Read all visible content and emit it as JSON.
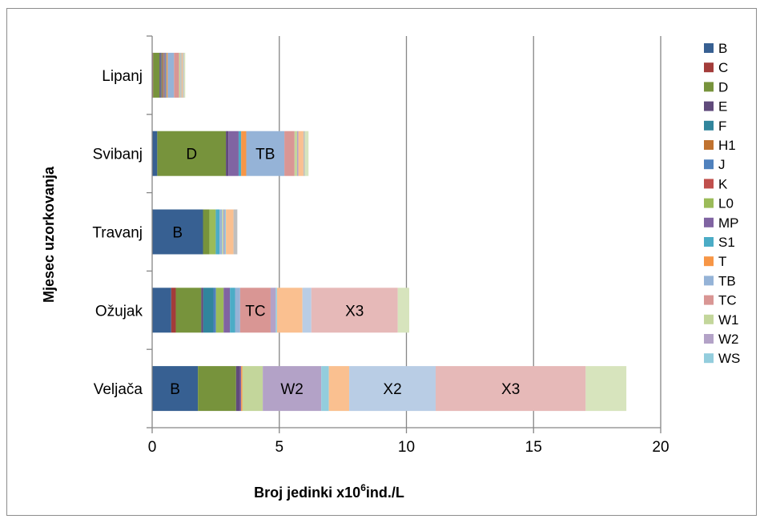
{
  "chart_data": {
    "type": "bar",
    "orientation": "horizontal",
    "stacked": true,
    "categories": [
      "Veljača",
      "Ožujak",
      "Travanj",
      "Svibanj",
      "Lipanj"
    ],
    "xlabel_prefix": "Broj jedinki x10",
    "xlabel_sup": "6",
    "xlabel_suffix": "ind./L",
    "ylabel": "Mjesec uzorkovanja",
    "xlim": [
      0,
      20
    ],
    "xticks": [
      0,
      5,
      10,
      15,
      20
    ],
    "grid": "vertical major",
    "legend_position": "right",
    "series": [
      {
        "name": "B",
        "color": "#376092",
        "values": [
          1.8,
          0.75,
          2.0,
          0.2,
          0.02
        ]
      },
      {
        "name": "C",
        "color": "#A33C3A",
        "values": [
          0.0,
          0.18,
          0.0,
          0.0,
          0.02
        ]
      },
      {
        "name": "D",
        "color": "#77933C",
        "values": [
          1.5,
          1.0,
          0.25,
          2.7,
          0.25
        ]
      },
      {
        "name": "E",
        "color": "#604A7B",
        "values": [
          0.15,
          0.08,
          0.0,
          0.1,
          0.05
        ]
      },
      {
        "name": "F",
        "color": "#31859C",
        "values": [
          0.0,
          0.4,
          0.0,
          0.0,
          0.03
        ]
      },
      {
        "name": "H1",
        "color": "#C0722F",
        "values": [
          0.0,
          0.0,
          0.0,
          0.0,
          0.05
        ]
      },
      {
        "name": "J",
        "color": "#4F81BD",
        "values": [
          0.0,
          0.1,
          0.0,
          0.0,
          0.02
        ]
      },
      {
        "name": "K",
        "color": "#C0504D",
        "values": [
          0.0,
          0.0,
          0.0,
          0.0,
          0.02
        ]
      },
      {
        "name": "L0",
        "color": "#9BBB59",
        "values": [
          0.0,
          0.3,
          0.25,
          0.0,
          0.02
        ]
      },
      {
        "name": "MP",
        "color": "#8064A2",
        "values": [
          0.05,
          0.25,
          0.0,
          0.4,
          0.05
        ]
      },
      {
        "name": "S1",
        "color": "#4BACC6",
        "values": [
          0.0,
          0.2,
          0.15,
          0.1,
          0.03
        ]
      },
      {
        "name": "T",
        "color": "#F79646",
        "values": [
          0.05,
          0.0,
          0.0,
          0.2,
          0.05
        ]
      },
      {
        "name": "TB",
        "color": "#95B3D7",
        "values": [
          0.0,
          0.2,
          0.1,
          1.5,
          0.25
        ]
      },
      {
        "name": "TC",
        "color": "#D99694",
        "values": [
          0.0,
          1.2,
          0.0,
          0.4,
          0.2
        ]
      },
      {
        "name": "W1",
        "color": "#C3D69B",
        "values": [
          0.8,
          0.0,
          0.05,
          0.1,
          0.05
        ]
      },
      {
        "name": "W2",
        "color": "#B3A2C7",
        "values": [
          2.3,
          0.2,
          0.05,
          0.05,
          0.02
        ]
      },
      {
        "name": "WS",
        "color": "#93CDDD",
        "values": [
          0.3,
          0.05,
          0.05,
          0.0,
          0.02
        ]
      },
      {
        "name": "",
        "color": "#FAC090",
        "values": [
          0.8,
          1.0,
          0.3,
          0.2,
          0.05
        ]
      },
      {
        "name": "",
        "color": "#BFBFBF",
        "values": [
          0.0,
          0.0,
          0.15,
          0.05,
          0.05
        ]
      },
      {
        "name": "X2",
        "color": "#B9CDE5",
        "values": [
          3.4,
          0.35,
          0.0,
          0.0,
          0.0
        ]
      },
      {
        "name": "X3",
        "color": "#E6B9B8",
        "values": [
          5.9,
          3.4,
          0.0,
          0.0,
          0.0
        ]
      },
      {
        "name": "",
        "color": "#D7E4BD",
        "values": [
          1.6,
          0.45,
          0.0,
          0.15,
          0.05
        ]
      }
    ],
    "segment_labels": [
      {
        "category": "Veljača",
        "series": "B",
        "text": "B"
      },
      {
        "category": "Veljača",
        "series": "W2",
        "text": "W2"
      },
      {
        "category": "Veljača",
        "series": "X2",
        "text": "X2"
      },
      {
        "category": "Veljača",
        "series": "X3",
        "text": "X3"
      },
      {
        "category": "Ožujak",
        "series": "TC",
        "text": "TC"
      },
      {
        "category": "Ožujak",
        "series": "X3",
        "text": "X3"
      },
      {
        "category": "Travanj",
        "series": "B",
        "text": "B"
      },
      {
        "category": "Svibanj",
        "series": "D",
        "text": "D"
      },
      {
        "category": "Svibanj",
        "series": "TB",
        "text": "TB"
      }
    ],
    "legend_items": [
      "B",
      "C",
      "D",
      "E",
      "F",
      "H1",
      "J",
      "K",
      "L0",
      "MP",
      "S1",
      "T",
      "TB",
      "TC",
      "W1",
      "W2",
      "WS"
    ]
  }
}
